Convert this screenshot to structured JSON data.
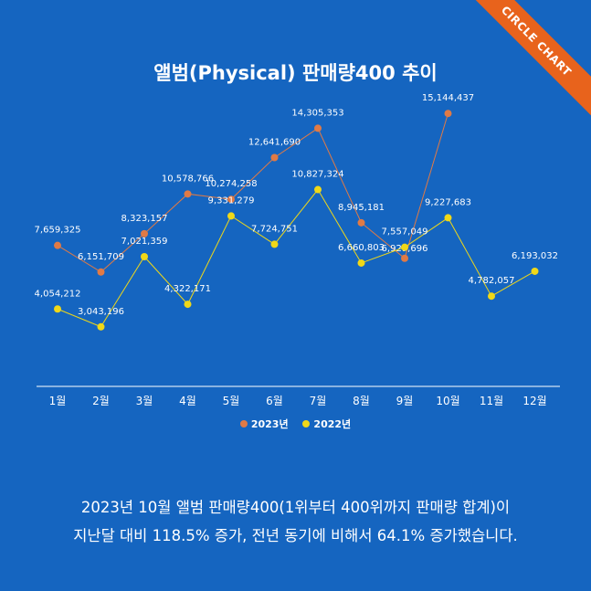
{
  "badge": "CIRCLE CHART",
  "caption": {
    "line1": "2023년 10월 앨범 판매량400(1위부터 400위까지 판매량 합계)이",
    "line2": "지난달 대비 118.5% 증가, 전년 동기에 비해서 64.1% 증가했습니다."
  },
  "colors": {
    "background": "#1565c0",
    "series_2023": "#e07a45",
    "series_2022": "#f0d818",
    "badge": "#e8631c"
  },
  "chart_data": {
    "type": "line",
    "title": "앨범(Physical) 판매량400 추이",
    "categories": [
      "1월",
      "2월",
      "3월",
      "4월",
      "5월",
      "6월",
      "7월",
      "8월",
      "9월",
      "10월",
      "11월",
      "12월"
    ],
    "series": [
      {
        "name": "2023년",
        "values": [
          7659325,
          6151709,
          8323157,
          10578766,
          10274258,
          12641690,
          14305353,
          8945181,
          6929696,
          15144437,
          null,
          null
        ],
        "labels": [
          "7,659,325",
          "6,151,709",
          "8,323,157",
          "10,578,766",
          "10,274,258",
          "12,641,690",
          "14,305,353",
          "8,945,181",
          "6,929,696",
          "15,144,437",
          "",
          ""
        ]
      },
      {
        "name": "2022년",
        "values": [
          4054212,
          3043196,
          7021359,
          4322171,
          9331279,
          7724751,
          10827324,
          6660803,
          7557049,
          9227683,
          4782057,
          6193032
        ],
        "labels": [
          "4,054,212",
          "3,043,196",
          "7,021,359",
          "4,322,171",
          "9,331,279",
          "7,724,751",
          "10,827,324",
          "6,660,803",
          "7,557,049",
          "9,227,683",
          "4,782,057",
          "6,193,032"
        ]
      }
    ],
    "legend_position": "bottom",
    "grid": false
  }
}
